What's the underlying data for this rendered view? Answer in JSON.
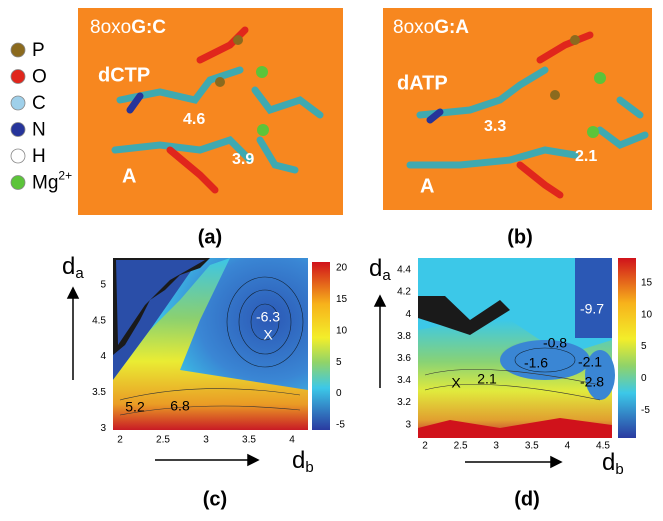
{
  "legend": [
    {
      "label": "P",
      "color": "#8b6a1e"
    },
    {
      "label": "O",
      "color": "#e0261c"
    },
    {
      "label": "C",
      "color": "#9fd0ea"
    },
    {
      "label": "N",
      "color": "#26349a"
    },
    {
      "label": "H",
      "color": "#ffffff"
    },
    {
      "label": "Mg",
      "sup": "2+",
      "color": "#5cc43a"
    }
  ],
  "panels": [
    {
      "title_prefix": "8oxo",
      "title_bold": "G:C",
      "nucleotide": "dCTP",
      "base": "A",
      "distances": [
        "4.6",
        "3.9"
      ],
      "caption": "(a)"
    },
    {
      "title_prefix": "8oxo",
      "title_bold": "G:A",
      "nucleotide": "dATP",
      "base": "A",
      "distances": [
        "3.3",
        "2.1"
      ],
      "caption": "(b)"
    }
  ],
  "plots": [
    {
      "caption": "(c)",
      "y_label": "d",
      "y_sub": "a",
      "x_label": "d",
      "x_sub": "b",
      "yticks": [
        "5",
        "4.5",
        "4",
        "3.5",
        "3"
      ],
      "xticks": [
        "2",
        "2.5",
        "3",
        "3.5",
        "4"
      ],
      "colorbar_ticks": [
        "20",
        "15",
        "10",
        "5",
        "0",
        "-5"
      ],
      "annotations": [
        "-6.3",
        "X",
        "5.2",
        "6.8"
      ]
    },
    {
      "caption": "(d)",
      "y_label": "d",
      "y_sub": "a",
      "x_label": "d",
      "x_sub": "b",
      "yticks": [
        "4.4",
        "4.2",
        "4",
        "3.8",
        "3.6",
        "3.4",
        "3.2",
        "3"
      ],
      "xticks": [
        "2",
        "2.5",
        "3",
        "3.5",
        "4",
        "4.5"
      ],
      "colorbar_ticks": [
        "15",
        "10",
        "5",
        "0",
        "-5"
      ],
      "annotations": [
        "-9.7",
        "-0.8",
        "-1.6",
        "-2.1",
        "-2.8",
        "X",
        "2.1"
      ]
    }
  ]
}
